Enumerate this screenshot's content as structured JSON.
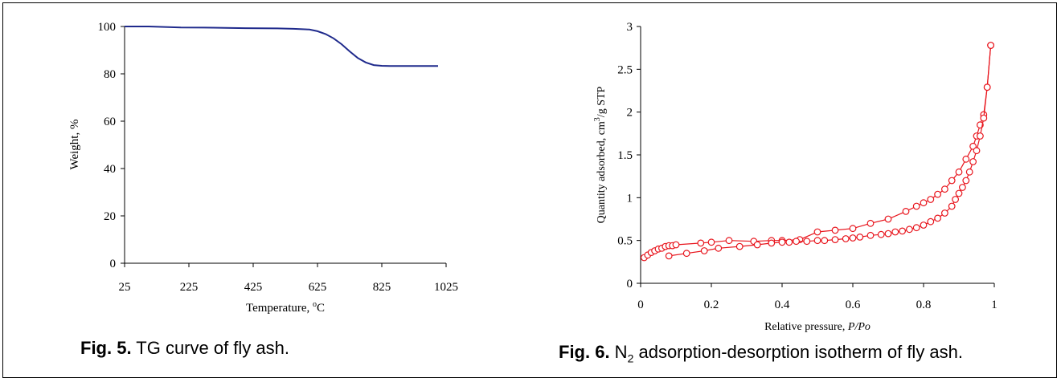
{
  "charts": {
    "chart_data": [
      {
        "type": "line",
        "title": "",
        "xlabel": "Temperature, ",
        "xlabel_sup": "o",
        "xlabel_tail": "C",
        "ylabel": "Weight, %",
        "xlim": [
          25,
          1025
        ],
        "ylim": [
          0,
          100
        ],
        "xticks": [
          "25",
          "225",
          "425",
          "625",
          "825",
          "1025"
        ],
        "yticks": [
          "0",
          "20",
          "40",
          "60",
          "80",
          "100"
        ],
        "grid": false,
        "series": [
          {
            "color": "#1f2a8c",
            "x": [
              25,
              100,
              200,
              300,
              400,
              500,
              550,
              600,
              625,
              650,
              675,
              700,
              725,
              750,
              775,
              800,
              825,
              850,
              900,
              950,
              1000
            ],
            "y": [
              100,
              100,
              99.6,
              99.5,
              99.3,
              99.2,
              99.0,
              98.7,
              98.0,
              96.8,
              95.0,
              92.5,
              89.5,
              86.7,
              84.8,
              83.7,
              83.4,
              83.3,
              83.3,
              83.3,
              83.3
            ]
          }
        ]
      },
      {
        "type": "line",
        "title": "",
        "xlabel": "Relative pressure, ",
        "xlabel_italic": "P/Po",
        "ylabel": "Quantity adsorbed, cm",
        "ylabel_sup": "3",
        "ylabel_tail": "/g STP",
        "xlim": [
          0,
          1
        ],
        "ylim": [
          0,
          3
        ],
        "xticks": [
          "0",
          "0.2",
          "0.4",
          "0.6",
          "0.8",
          "1"
        ],
        "yticks": [
          "0",
          "0.5",
          "1",
          "1.5",
          "2",
          "2.5",
          "3"
        ],
        "grid": false,
        "series": [
          {
            "color": "#e8141c",
            "marker": "open-circle",
            "x": [
              0.01,
              0.02,
              0.03,
              0.04,
              0.05,
              0.06,
              0.07,
              0.08,
              0.09,
              0.1,
              0.17,
              0.2,
              0.25,
              0.32,
              0.37,
              0.4,
              0.45,
              0.5,
              0.55,
              0.6,
              0.65,
              0.7,
              0.75,
              0.78,
              0.8,
              0.82,
              0.84,
              0.86,
              0.88,
              0.9,
              0.92,
              0.94,
              0.95,
              0.96,
              0.97,
              0.98,
              0.99
            ],
            "y": [
              0.3,
              0.33,
              0.36,
              0.38,
              0.4,
              0.41,
              0.43,
              0.44,
              0.44,
              0.45,
              0.47,
              0.48,
              0.5,
              0.49,
              0.5,
              0.5,
              0.51,
              0.6,
              0.62,
              0.64,
              0.7,
              0.75,
              0.84,
              0.9,
              0.94,
              0.98,
              1.04,
              1.1,
              1.2,
              1.3,
              1.45,
              1.6,
              1.72,
              1.85,
              1.97,
              2.29,
              2.78
            ]
          },
          {
            "color": "#e8141c",
            "marker": "open-circle",
            "x": [
              0.99,
              0.98,
              0.97,
              0.96,
              0.95,
              0.94,
              0.93,
              0.92,
              0.91,
              0.9,
              0.89,
              0.88,
              0.86,
              0.84,
              0.82,
              0.8,
              0.78,
              0.76,
              0.74,
              0.72,
              0.7,
              0.68,
              0.65,
              0.62,
              0.6,
              0.58,
              0.55,
              0.52,
              0.5,
              0.47,
              0.44,
              0.42,
              0.4,
              0.37,
              0.33,
              0.28,
              0.22,
              0.18,
              0.13,
              0.08
            ],
            "y": [
              2.78,
              2.29,
              1.93,
              1.72,
              1.55,
              1.42,
              1.3,
              1.2,
              1.12,
              1.05,
              0.98,
              0.9,
              0.82,
              0.76,
              0.72,
              0.68,
              0.65,
              0.63,
              0.61,
              0.6,
              0.58,
              0.57,
              0.56,
              0.54,
              0.53,
              0.52,
              0.51,
              0.5,
              0.5,
              0.49,
              0.49,
              0.48,
              0.48,
              0.47,
              0.45,
              0.43,
              0.41,
              0.38,
              0.35,
              0.32
            ]
          }
        ]
      }
    ]
  },
  "captions": {
    "fig5_label": "Fig. 5.",
    "fig5_text": " TG curve of fly ash.",
    "fig6_label": "Fig. 6.",
    "fig6_text_a": " N",
    "fig6_sub": "2",
    "fig6_text_b": " adsorption-desorption isotherm of fly ash."
  }
}
